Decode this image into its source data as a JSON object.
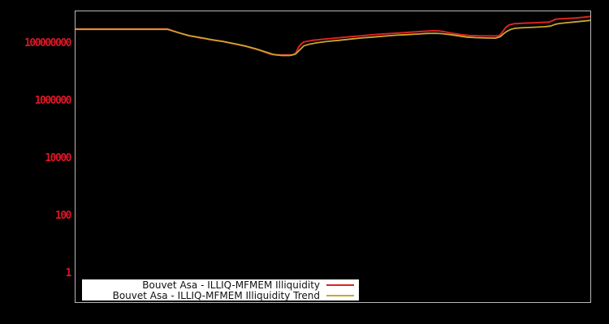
{
  "window": {
    "background_color": "#000000",
    "plot_border_color": "#b8b8b8"
  },
  "legend": {
    "background": "#ffffff",
    "position": "bottom-left-inside"
  },
  "chart_data": {
    "type": "line",
    "title": "",
    "xlabel": "",
    "ylabel": "",
    "grid": false,
    "x_axis": {
      "tick_labels_visible": false
    },
    "y_axis": {
      "scale": "log",
      "log_min": -0.99,
      "log_max": 9.15,
      "label_color": "#dc1626",
      "ticks": [
        {
          "value": 1,
          "label": "1"
        },
        {
          "value": 100,
          "label": "100"
        },
        {
          "value": 10000,
          "label": "10000"
        },
        {
          "value": 1000000,
          "label": "1000000"
        },
        {
          "value": 100000000,
          "label": "100000000"
        }
      ]
    },
    "legend_position": "bottom-left",
    "series": [
      {
        "name": "Bouvet Asa - ILLIQ-MFMEM Illiquidity",
        "color": "#dd2222",
        "stroke_width": 2,
        "points": [
          [
            0.0,
            321000000.0
          ],
          [
            0.09,
            321000000.0
          ],
          [
            0.1795,
            321000000.0
          ],
          [
            0.1858,
            292000000.0
          ],
          [
            0.1953,
            256000000.0
          ],
          [
            0.2047,
            225000000.0
          ],
          [
            0.2142,
            204000000.0
          ],
          [
            0.222,
            185000000.0
          ],
          [
            0.2315,
            173000000.0
          ],
          [
            0.2425,
            157000000.0
          ],
          [
            0.2535,
            148000000.0
          ],
          [
            0.2646,
            134000000.0
          ],
          [
            0.2756,
            126000000.0
          ],
          [
            0.2866,
            119000000.0
          ],
          [
            0.2976,
            106000000.0
          ],
          [
            0.3087,
            97000000.0
          ],
          [
            0.3197,
            88000000.0
          ],
          [
            0.3307,
            80000000.0
          ],
          [
            0.3417,
            70000000.0
          ],
          [
            0.3528,
            62000000.0
          ],
          [
            0.3638,
            53000000.0
          ],
          [
            0.3732,
            45900000.0
          ],
          [
            0.3811,
            41700000.0
          ],
          [
            0.3921,
            40300000.0
          ],
          [
            0.4079,
            40300000.0
          ],
          [
            0.422,
            40300000.0
          ],
          [
            0.4268,
            45900000.0
          ],
          [
            0.4299,
            59500000.0
          ],
          [
            0.4331,
            77000000.0
          ],
          [
            0.4378,
            97000000.0
          ],
          [
            0.4425,
            114000000.0
          ],
          [
            0.4598,
            130000000.0
          ],
          [
            0.4835,
            143000000.0
          ],
          [
            0.5071,
            157000000.0
          ],
          [
            0.5307,
            173000000.0
          ],
          [
            0.5543,
            185000000.0
          ],
          [
            0.578,
            204000000.0
          ],
          [
            0.6016,
            218000000.0
          ],
          [
            0.6252,
            232000000.0
          ],
          [
            0.6488,
            248000000.0
          ],
          [
            0.6724,
            265000000.0
          ],
          [
            0.6929,
            279000000.0
          ],
          [
            0.7055,
            273000000.0
          ],
          [
            0.7165,
            256000000.0
          ],
          [
            0.7323,
            225000000.0
          ],
          [
            0.748,
            204000000.0
          ],
          [
            0.7638,
            191000000.0
          ],
          [
            0.7827,
            185000000.0
          ],
          [
            0.8063,
            184000000.0
          ],
          [
            0.8205,
            184000000.0
          ],
          [
            0.8252,
            218000000.0
          ],
          [
            0.8299,
            282000000.0
          ],
          [
            0.8346,
            366000000.0
          ],
          [
            0.8409,
            445000000.0
          ],
          [
            0.8504,
            490000000.0
          ],
          [
            0.8661,
            506000000.0
          ],
          [
            0.885,
            523000000.0
          ],
          [
            0.9039,
            540000000.0
          ],
          [
            0.9181,
            557000000.0
          ],
          [
            0.9244,
            615000000.0
          ],
          [
            0.9307,
            700000000.0
          ],
          [
            0.9402,
            723000000.0
          ],
          [
            0.9559,
            746000000.0
          ],
          [
            0.9717,
            782000000.0
          ],
          [
            0.9858,
            822000000.0
          ],
          [
            0.9984,
            876000000.0
          ]
        ]
      },
      {
        "name": "Bouvet Asa - ILLIQ-MFMEM Illiquidity Trend",
        "color": "#c9a82f",
        "stroke_width": 1.8,
        "points": [
          [
            0.0,
            314000000.0
          ],
          [
            0.178,
            314000000.0
          ],
          [
            0.1969,
            248000000.0
          ],
          [
            0.2189,
            191000000.0
          ],
          [
            0.2409,
            163000000.0
          ],
          [
            0.263,
            138000000.0
          ],
          [
            0.285,
            119000000.0
          ],
          [
            0.3071,
            100000000.0
          ],
          [
            0.3291,
            83000000.0
          ],
          [
            0.3496,
            66000000.0
          ],
          [
            0.3685,
            51400000.0
          ],
          [
            0.3843,
            41700000.0
          ],
          [
            0.4,
            38700000.0
          ],
          [
            0.4157,
            38700000.0
          ],
          [
            0.4268,
            43000000.0
          ],
          [
            0.4346,
            59500000.0
          ],
          [
            0.4425,
            83000000.0
          ],
          [
            0.452,
            94000000.0
          ],
          [
            0.4677,
            106000000.0
          ],
          [
            0.4882,
            119000000.0
          ],
          [
            0.5102,
            130000000.0
          ],
          [
            0.5323,
            143000000.0
          ],
          [
            0.5543,
            157000000.0
          ],
          [
            0.5764,
            168000000.0
          ],
          [
            0.5984,
            182000000.0
          ],
          [
            0.6205,
            195000000.0
          ],
          [
            0.6409,
            204000000.0
          ],
          [
            0.6614,
            214000000.0
          ],
          [
            0.6819,
            225000000.0
          ],
          [
            0.6976,
            229000000.0
          ],
          [
            0.7118,
            221000000.0
          ],
          [
            0.7276,
            204000000.0
          ],
          [
            0.7433,
            185000000.0
          ],
          [
            0.7591,
            168000000.0
          ],
          [
            0.7764,
            161000000.0
          ],
          [
            0.7953,
            157000000.0
          ],
          [
            0.8142,
            155000000.0
          ],
          [
            0.8236,
            173000000.0
          ],
          [
            0.8299,
            218000000.0
          ],
          [
            0.8362,
            265000000.0
          ],
          [
            0.8441,
            311000000.0
          ],
          [
            0.8535,
            343000000.0
          ],
          [
            0.8709,
            360000000.0
          ],
          [
            0.8898,
            371000000.0
          ],
          [
            0.9087,
            385000000.0
          ],
          [
            0.9213,
            406000000.0
          ],
          [
            0.9291,
            459000000.0
          ],
          [
            0.937,
            496000000.0
          ],
          [
            0.9512,
            530000000.0
          ],
          [
            0.9669,
            563000000.0
          ],
          [
            0.9827,
            599000000.0
          ],
          [
            0.9984,
            642000000.0
          ]
        ]
      }
    ]
  }
}
